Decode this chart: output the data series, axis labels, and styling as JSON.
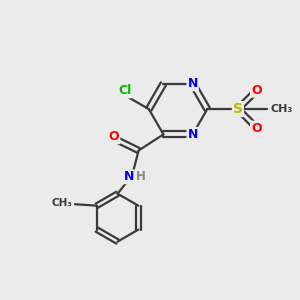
{
  "background_color": "#ebebeb",
  "bond_color": "#3a3a3a",
  "atom_colors": {
    "N": "#0000ee",
    "O": "#ff0000",
    "Cl": "#00bb00",
    "S": "#bbbb00",
    "C": "#3a3a3a",
    "H": "#888888"
  },
  "figsize": [
    3.0,
    3.0
  ],
  "dpi": 100
}
